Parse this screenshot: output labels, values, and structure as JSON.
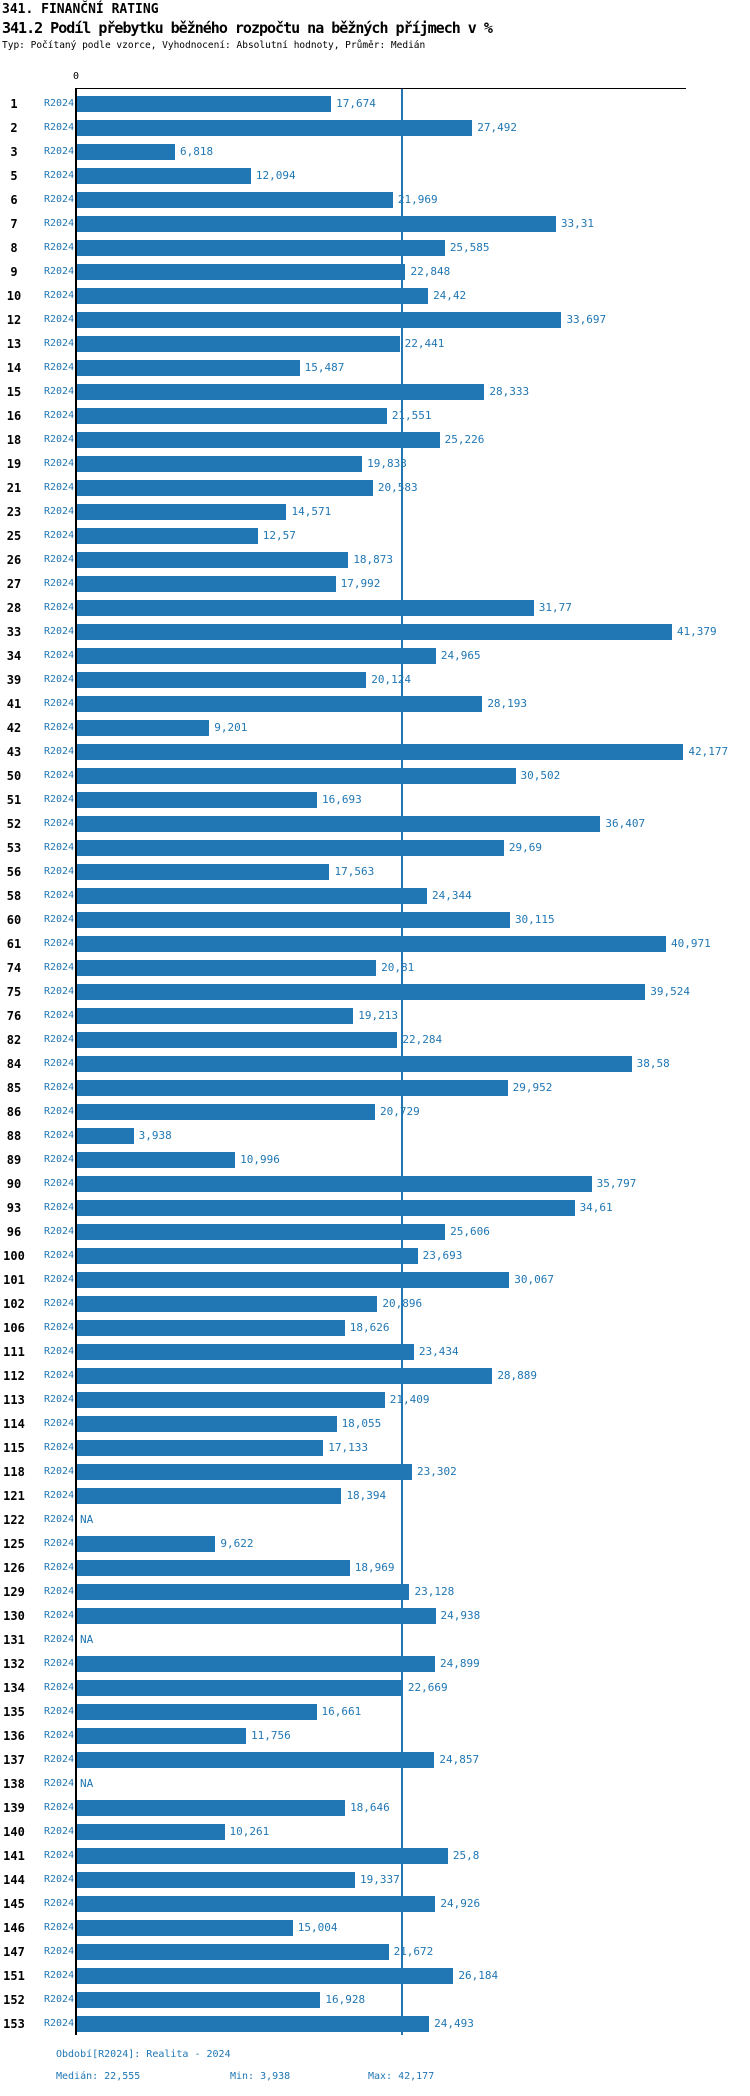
{
  "header": {
    "title": "341. FINANČNÍ RATING",
    "subtitle": "341.2 Podíl přebytku běžného rozpočtu na běžných příjmech v %",
    "meta": "Typ: Počítaný podle vzorce, Vyhodnocení: Absolutní hodnoty, Průměr: Medián"
  },
  "chart_data": {
    "type": "bar",
    "orientation": "horizontal",
    "series_label": "R2024",
    "zero_tick": "0",
    "xlim": [
      0,
      42.5
    ],
    "grid": false,
    "median_value": 22.555,
    "bar_color": "#2077b4",
    "median_line_color": "#2077b4",
    "categories": [
      "1",
      "2",
      "3",
      "5",
      "6",
      "7",
      "8",
      "9",
      "10",
      "12",
      "13",
      "14",
      "15",
      "16",
      "18",
      "19",
      "21",
      "23",
      "25",
      "26",
      "27",
      "28",
      "33",
      "34",
      "39",
      "41",
      "42",
      "43",
      "50",
      "51",
      "52",
      "53",
      "56",
      "58",
      "60",
      "61",
      "74",
      "75",
      "76",
      "82",
      "84",
      "85",
      "86",
      "88",
      "89",
      "90",
      "93",
      "96",
      "100",
      "101",
      "102",
      "106",
      "111",
      "112",
      "113",
      "114",
      "115",
      "118",
      "121",
      "122",
      "125",
      "126",
      "129",
      "130",
      "131",
      "132",
      "134",
      "135",
      "136",
      "137",
      "138",
      "139",
      "140",
      "141",
      "144",
      "145",
      "146",
      "147",
      "151",
      "152",
      "153"
    ],
    "values": [
      17.674,
      27.492,
      6.818,
      12.094,
      21.969,
      33.31,
      25.585,
      22.848,
      24.42,
      33.697,
      22.441,
      15.487,
      28.333,
      21.551,
      25.226,
      19.833,
      20.583,
      14.571,
      12.57,
      18.873,
      17.992,
      31.77,
      41.379,
      24.965,
      20.124,
      28.193,
      9.201,
      42.177,
      30.502,
      16.693,
      36.407,
      29.69,
      17.563,
      24.344,
      30.115,
      40.971,
      20.81,
      39.524,
      19.213,
      22.284,
      38.58,
      29.952,
      20.729,
      3.938,
      10.996,
      35.797,
      34.61,
      25.606,
      23.693,
      30.067,
      20.896,
      18.626,
      23.434,
      28.889,
      21.409,
      18.055,
      17.133,
      23.302,
      18.394,
      null,
      9.622,
      18.969,
      23.128,
      24.938,
      null,
      24.899,
      22.669,
      16.661,
      11.756,
      24.857,
      null,
      18.646,
      10.261,
      25.8,
      19.337,
      24.926,
      15.004,
      21.672,
      26.184,
      16.928,
      24.493
    ],
    "value_labels": [
      "17,674",
      "27,492",
      "6,818",
      "12,094",
      "21,969",
      "33,31",
      "25,585",
      "22,848",
      "24,42",
      "33,697",
      "22,441",
      "15,487",
      "28,333",
      "21,551",
      "25,226",
      "19,833",
      "20,583",
      "14,571",
      "12,57",
      "18,873",
      "17,992",
      "31,77",
      "41,379",
      "24,965",
      "20,124",
      "28,193",
      "9,201",
      "42,177",
      "30,502",
      "16,693",
      "36,407",
      "29,69",
      "17,563",
      "24,344",
      "30,115",
      "40,971",
      "20,81",
      "39,524",
      "19,213",
      "22,284",
      "38,58",
      "29,952",
      "20,729",
      "3,938",
      "10,996",
      "35,797",
      "34,61",
      "25,606",
      "23,693",
      "30,067",
      "20,896",
      "18,626",
      "23,434",
      "28,889",
      "21,409",
      "18,055",
      "17,133",
      "23,302",
      "18,394",
      "NA",
      "9,622",
      "18,969",
      "23,128",
      "24,938",
      "NA",
      "24,899",
      "22,669",
      "16,661",
      "11,756",
      "24,857",
      "NA",
      "18,646",
      "10,261",
      "25,8",
      "19,337",
      "24,926",
      "15,004",
      "21,672",
      "26,184",
      "16,928",
      "24,493"
    ]
  },
  "footer": {
    "period": "Období[R2024]: Realita - 2024",
    "median": "Medián: 22,555",
    "min": "Min: 3,938",
    "max": "Max: 42,177"
  }
}
